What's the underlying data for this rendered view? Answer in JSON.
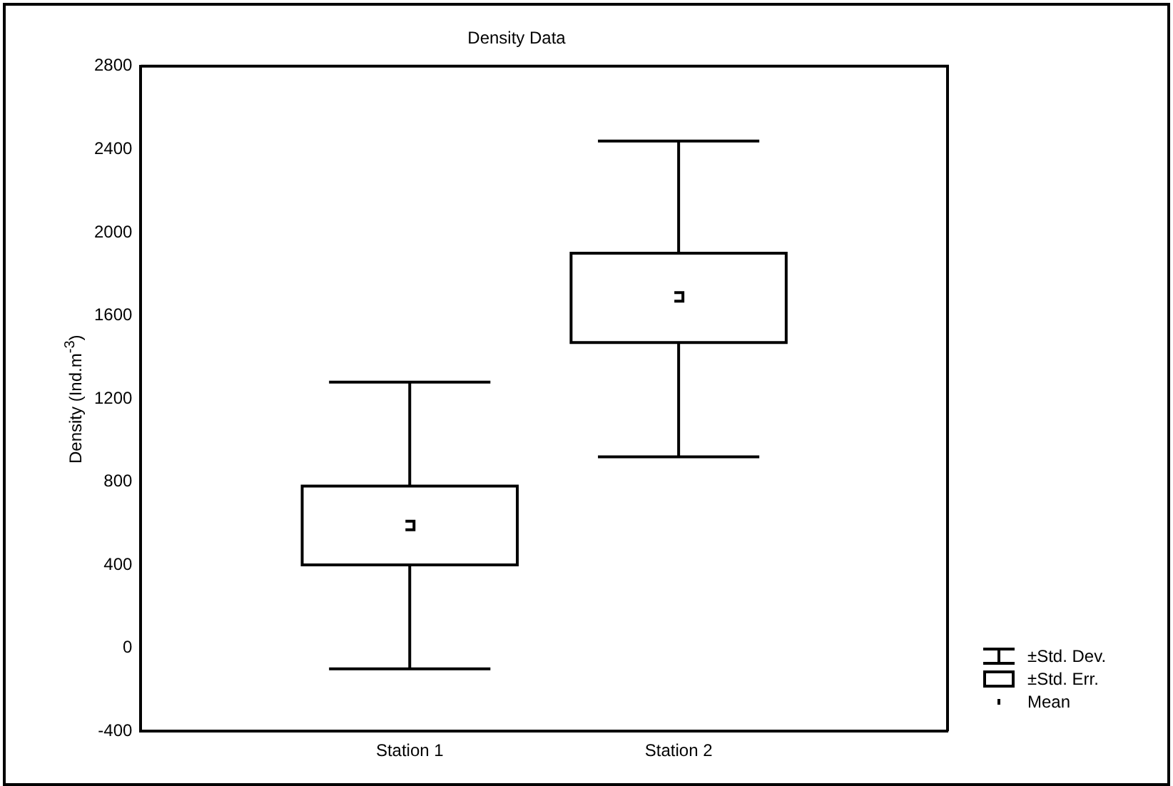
{
  "chart_data": {
    "type": "box",
    "title": "Density Data",
    "ylabel": "Density (Ind.m$^{-3}$)",
    "categories": [
      "Station 1",
      "Station 2"
    ],
    "boxes": [
      {
        "low": -100,
        "q1": 400,
        "q3": 780,
        "high": 1280,
        "mean": 590
      },
      {
        "low": 920,
        "q1": 1470,
        "q3": 1900,
        "high": 2440,
        "mean": 1690
      }
    ],
    "color": "#000000",
    "ylim": [
      -400,
      2800
    ],
    "yticks": [
      -400,
      0,
      400,
      800,
      1200,
      1600,
      2000,
      2400,
      2800
    ],
    "annotations": [
      "±Std. Dev.",
      "±Std. Err.",
      "Mean"
    ],
    "grid": false
  }
}
